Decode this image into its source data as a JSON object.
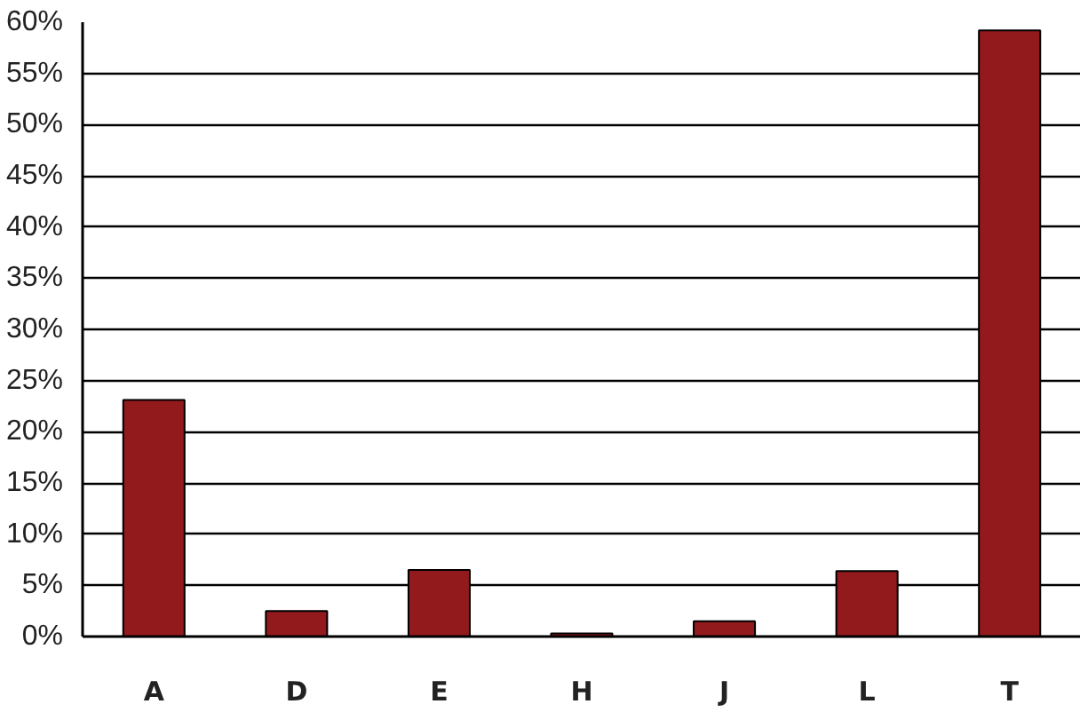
{
  "chart_data": {
    "type": "bar",
    "categories": [
      "A",
      "D",
      "E",
      "H",
      "J",
      "L",
      "T"
    ],
    "values": [
      23.1,
      2.5,
      6.5,
      0.3,
      1.5,
      6.4,
      59.2
    ],
    "color": "#921a1d",
    "ylim": [
      0,
      60
    ],
    "yticks": [
      {
        "value": 0,
        "label": "0%"
      },
      {
        "value": 5,
        "label": "5%"
      },
      {
        "value": 10,
        "label": "10%"
      },
      {
        "value": 15,
        "label": "15%"
      },
      {
        "value": 20,
        "label": "20%"
      },
      {
        "value": 25,
        "label": "25%"
      },
      {
        "value": 30,
        "label": "30%"
      },
      {
        "value": 35,
        "label": "35%"
      },
      {
        "value": 40,
        "label": "40%"
      },
      {
        "value": 45,
        "label": "45%"
      },
      {
        "value": 50,
        "label": "50%"
      },
      {
        "value": 55,
        "label": "55%"
      },
      {
        "value": 60,
        "label": "60%"
      }
    ],
    "grid": "y"
  }
}
